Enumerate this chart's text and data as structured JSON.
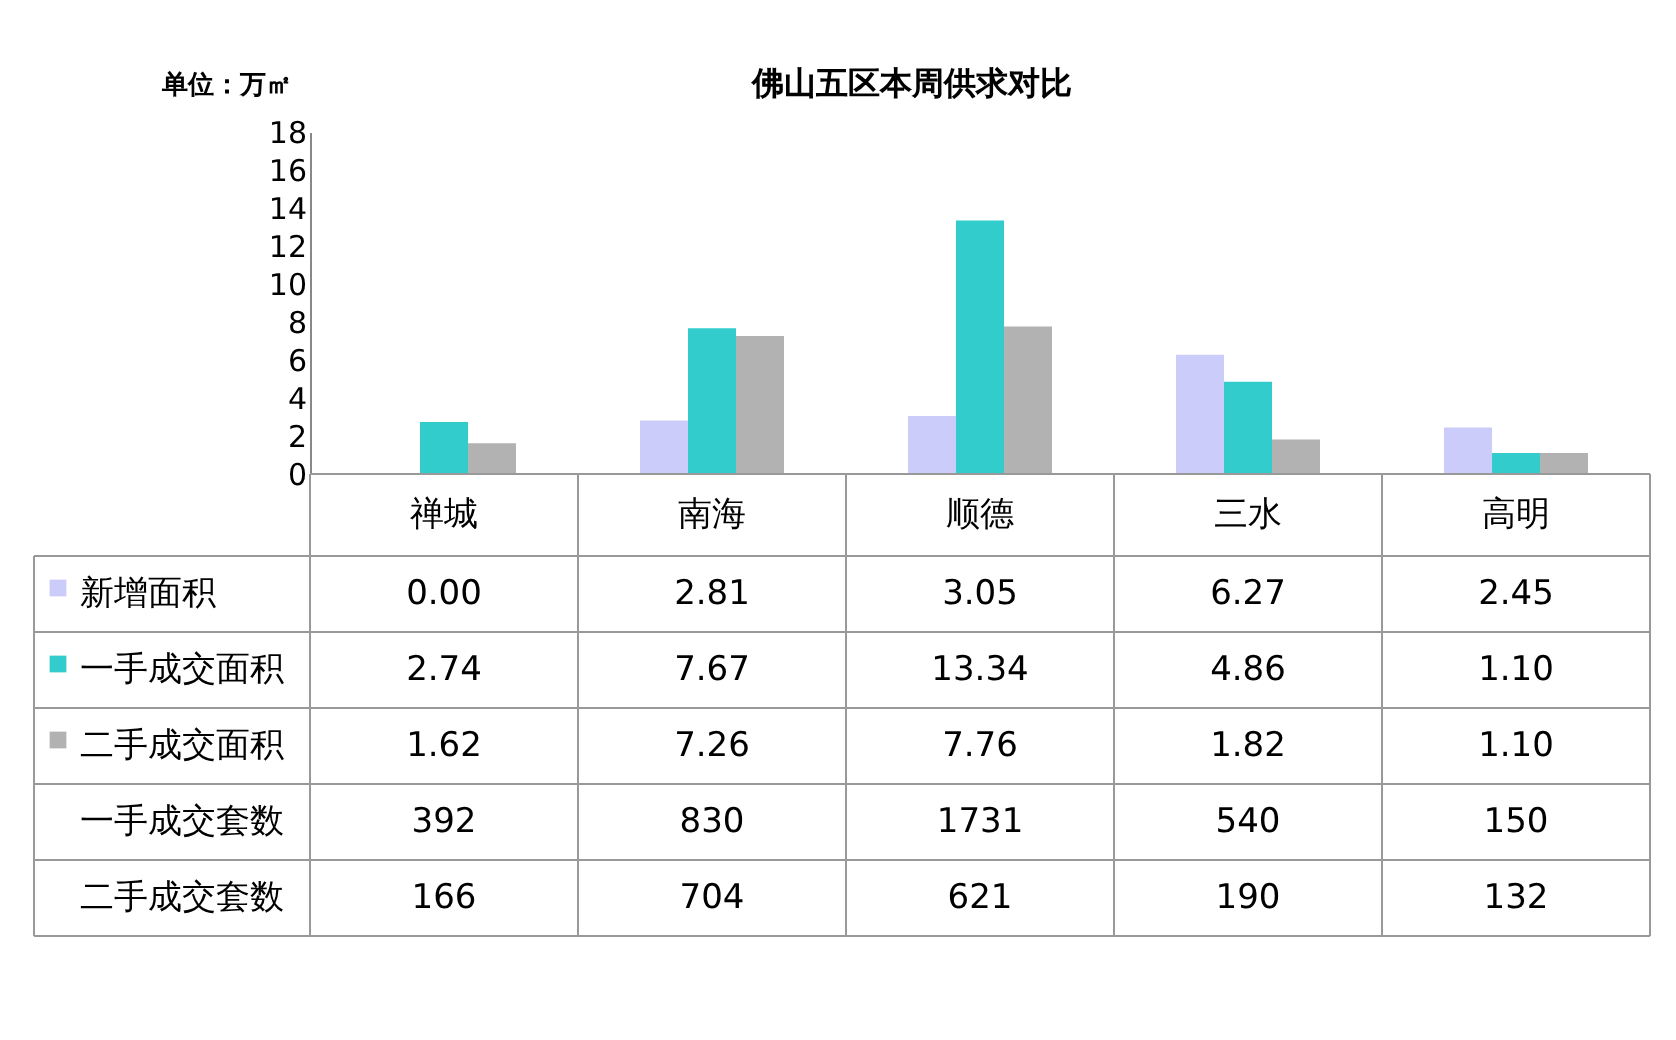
{
  "chart_data": {
    "type": "bar",
    "title": "佛山五区本周供求对比",
    "ylabel": "单位：万㎡",
    "categories": [
      "禅城",
      "南海",
      "顺德",
      "三水",
      "高明"
    ],
    "series": [
      {
        "name": "新增面积",
        "color": "#ccccfa",
        "values": [
          0.0,
          2.81,
          3.05,
          6.27,
          2.45
        ],
        "value_labels": [
          "0.00",
          "2.81",
          "3.05",
          "6.27",
          "2.45"
        ]
      },
      {
        "name": "一手成交面积",
        "color": "#33cccc",
        "values": [
          2.74,
          7.67,
          13.34,
          4.86,
          1.1
        ],
        "value_labels": [
          "2.74",
          "7.67",
          "13.34",
          "4.86",
          "1.10"
        ]
      },
      {
        "name": "二手成交面积",
        "color": "#b2b2b2",
        "values": [
          1.62,
          7.26,
          7.76,
          1.82,
          1.1
        ],
        "value_labels": [
          "1.62",
          "7.26",
          "7.76",
          "1.82",
          "1.10"
        ]
      }
    ],
    "annotations": [
      "一手成交套数",
      "392",
      "830",
      "1731",
      "540",
      "150",
      "二手成交套数",
      "166",
      "704",
      "621",
      "190",
      "132"
    ],
    "ylim": [
      0,
      18
    ],
    "yticks": [
      0,
      2,
      4,
      6,
      8,
      10,
      12,
      14,
      16,
      18
    ],
    "grid": false,
    "legend": "bottom left"
  }
}
